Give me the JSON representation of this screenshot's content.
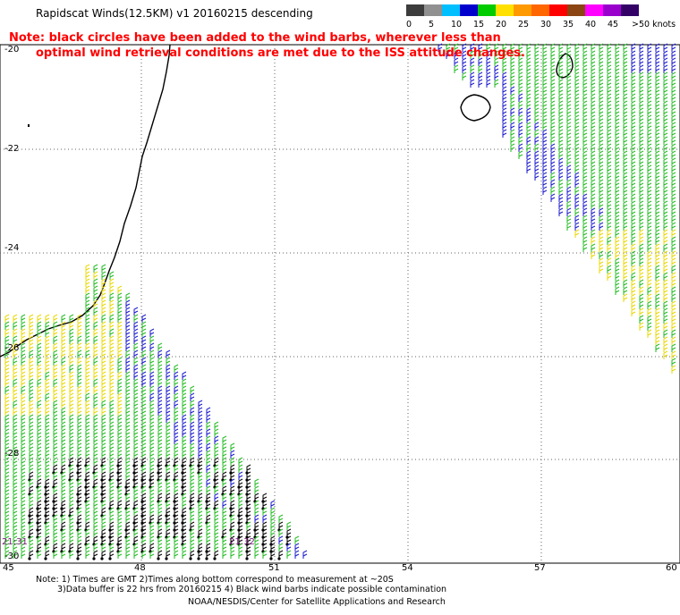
{
  "header": {
    "title": "Rapidscat Winds(12.5KM) v1 20160215 descending",
    "note_line1": "Note: black circles have been added to the wind barbs, wherever less than",
    "note_line2": "optimal wind retrieval conditions are met due to the ISS attitude changes."
  },
  "legend": {
    "colors": [
      "#3c3c3c",
      "#909090",
      "#00bfff",
      "#0000cd",
      "#00cc00",
      "#ffe000",
      "#ff9900",
      "#ff6600",
      "#ff0000",
      "#8b4513",
      "#ff00ff",
      "#9900cc",
      "#330066"
    ],
    "labels": [
      "0",
      "5",
      "10",
      "15",
      "20",
      "25",
      "30",
      "35",
      "40",
      "45",
      ">50 knots"
    ]
  },
  "axes": {
    "y_labels": [
      "-20",
      "-22",
      "-24",
      "-26",
      "-28",
      "-30"
    ],
    "x_labels": [
      "45",
      "48",
      "51",
      "54",
      "57",
      "60"
    ]
  },
  "time_labels": [
    "21:31",
    "21:32"
  ],
  "footer": {
    "line1": "Note: 1) Times are GMT 2)Times along bottom correspond to measurement at ~20S",
    "line2": "3)Data buffer is 22 hrs from 20160215 4) Black wind barbs indicate possible contamination",
    "credit": "NOAA/NESDIS/Center for Satellite Applications and Research"
  }
}
